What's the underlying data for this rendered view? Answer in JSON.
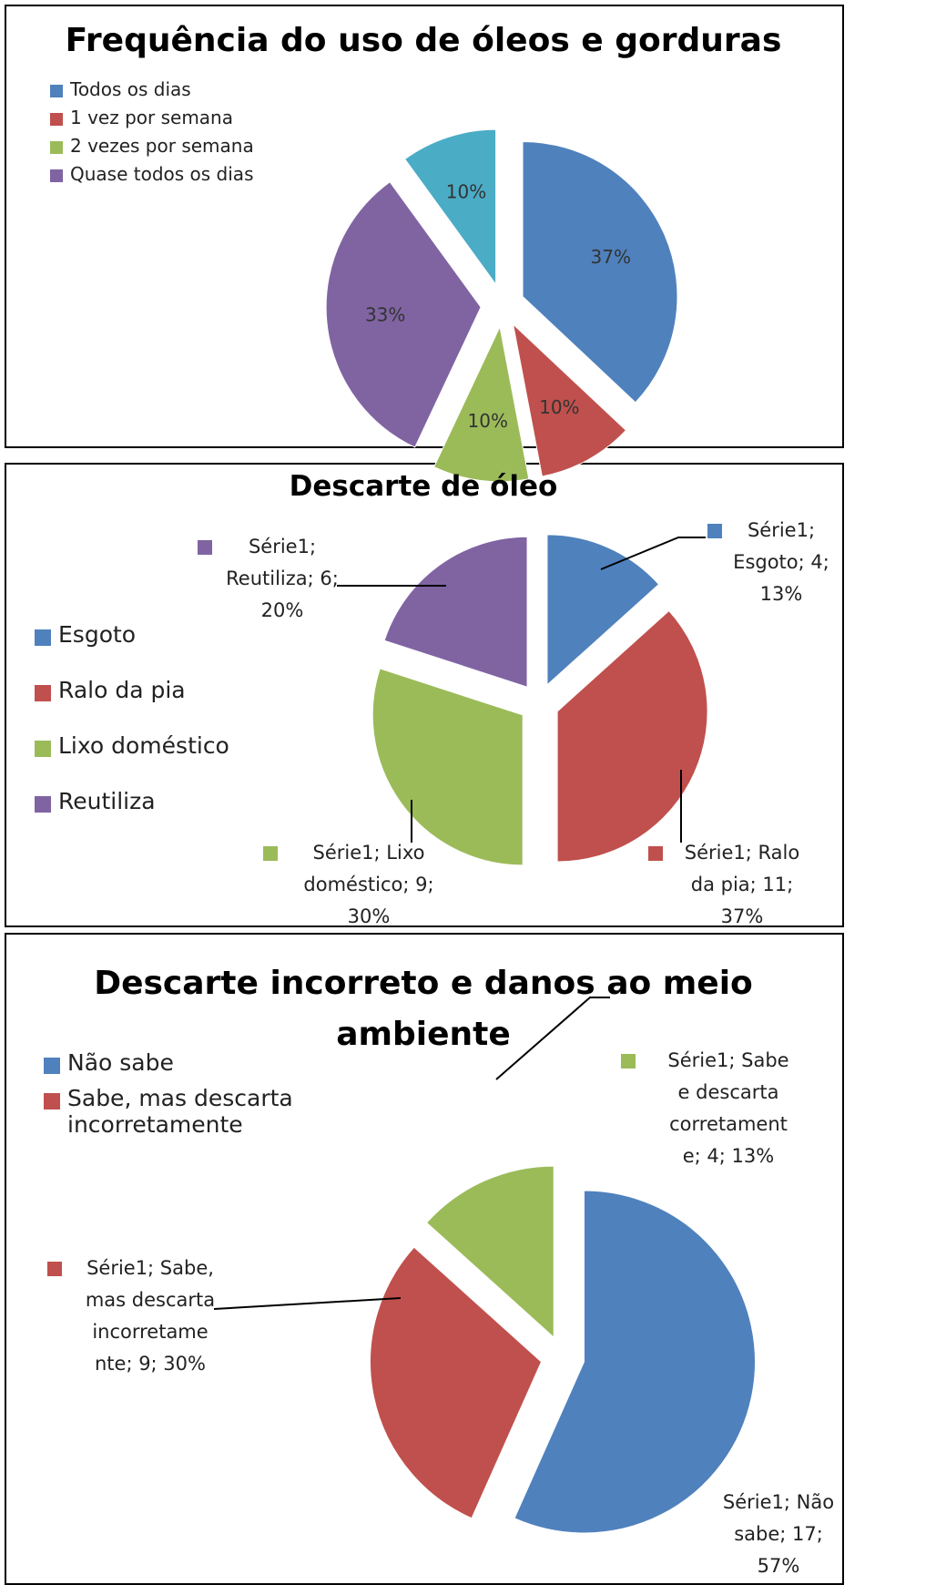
{
  "chart_data": [
    {
      "type": "pie",
      "title": "Frequência do uso de óleos e gorduras",
      "categories": [
        "Todos os dias",
        "1 vez por semana",
        "2 vezes por semana",
        "Quase todos os dias",
        null
      ],
      "values": [
        37,
        10,
        10,
        33,
        10
      ],
      "value_labels": [
        "37%",
        "10%",
        "10%",
        "33%",
        "10%"
      ],
      "colors": [
        "#4f81bd",
        "#c0504d",
        "#9bbb59",
        "#8064a2",
        "#4bacc6"
      ],
      "legend": "upper left"
    },
    {
      "type": "pie",
      "title": "Descarte de óleo",
      "categories": [
        "Esgoto",
        "Ralo da pia",
        "Lixo doméstico",
        "Reutiliza"
      ],
      "values": [
        4,
        11,
        9,
        6
      ],
      "value_labels": [
        [
          "Série1;",
          "Esgoto; 4;",
          "13%"
        ],
        [
          "Série1; Ralo",
          "da pia; 11;",
          "37%"
        ],
        [
          "Série1; Lixo",
          "doméstico; 9;",
          "30%"
        ],
        [
          "Série1;",
          "Reutiliza; 6;",
          "20%"
        ]
      ],
      "colors": [
        "#4f81bd",
        "#c0504d",
        "#9bbb59",
        "#8064a2"
      ],
      "legend": "left"
    },
    {
      "type": "pie",
      "title": "Descarte incorreto e danos ao meio ambiente",
      "categories": [
        "Não sabe",
        "Sabe, mas descarta incorretamente",
        null
      ],
      "values": [
        17,
        9,
        4
      ],
      "value_labels": [
        [
          "Série1; Não",
          "sabe; 17;",
          "57%"
        ],
        [
          "Série1; Sabe,",
          "mas descarta",
          "incorretame",
          "nte; 9; 30%"
        ],
        [
          "Série1; Sabe",
          "e descarta",
          "corretament",
          "e; 4; 13%"
        ]
      ],
      "colors": [
        "#4f81bd",
        "#c0504d",
        "#9bbb59"
      ],
      "legend": "upper left"
    }
  ]
}
